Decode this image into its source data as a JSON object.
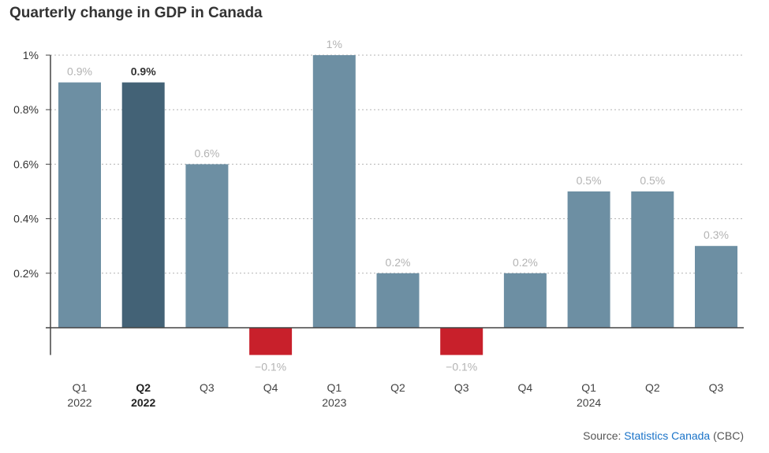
{
  "title": "Quarterly change in GDP in Canada",
  "source": {
    "prefix": "Source: ",
    "link_text": "Statistics Canada",
    "suffix": " (CBC)"
  },
  "colors": {
    "bar": "#6d8fa3",
    "highlight": "#436276",
    "negative": "#c8202b",
    "grid": "#b3b3b3",
    "axis": "#444444"
  },
  "chart_data": {
    "type": "bar",
    "title": "Quarterly change in GDP in Canada",
    "xlabel": "",
    "ylabel": "",
    "ylim": [
      -0.1,
      1.0
    ],
    "y_ticks": [
      {
        "value": 0.2,
        "label": "0.2%"
      },
      {
        "value": 0.4,
        "label": "0.4%"
      },
      {
        "value": 0.6,
        "label": "0.6%"
      },
      {
        "value": 0.8,
        "label": "0.8%"
      },
      {
        "value": 1.0,
        "label": "1%"
      }
    ],
    "grid": true,
    "categories": [
      {
        "quarter": "Q1",
        "year": "2022"
      },
      {
        "quarter": "Q2",
        "year": "2022"
      },
      {
        "quarter": "Q3",
        "year": ""
      },
      {
        "quarter": "Q4",
        "year": ""
      },
      {
        "quarter": "Q1",
        "year": "2023"
      },
      {
        "quarter": "Q2",
        "year": ""
      },
      {
        "quarter": "Q3",
        "year": ""
      },
      {
        "quarter": "Q4",
        "year": ""
      },
      {
        "quarter": "Q1",
        "year": "2024"
      },
      {
        "quarter": "Q2",
        "year": ""
      },
      {
        "quarter": "Q3",
        "year": ""
      }
    ],
    "values": [
      0.9,
      0.9,
      0.6,
      -0.1,
      1.0,
      0.2,
      -0.1,
      0.2,
      0.5,
      0.5,
      0.3
    ],
    "value_labels": [
      "0.9%",
      "0.9%",
      "0.6%",
      "−0.1%",
      "1%",
      "0.2%",
      "−0.1%",
      "0.2%",
      "0.5%",
      "0.5%",
      "0.3%"
    ],
    "highlight_index": 1
  }
}
